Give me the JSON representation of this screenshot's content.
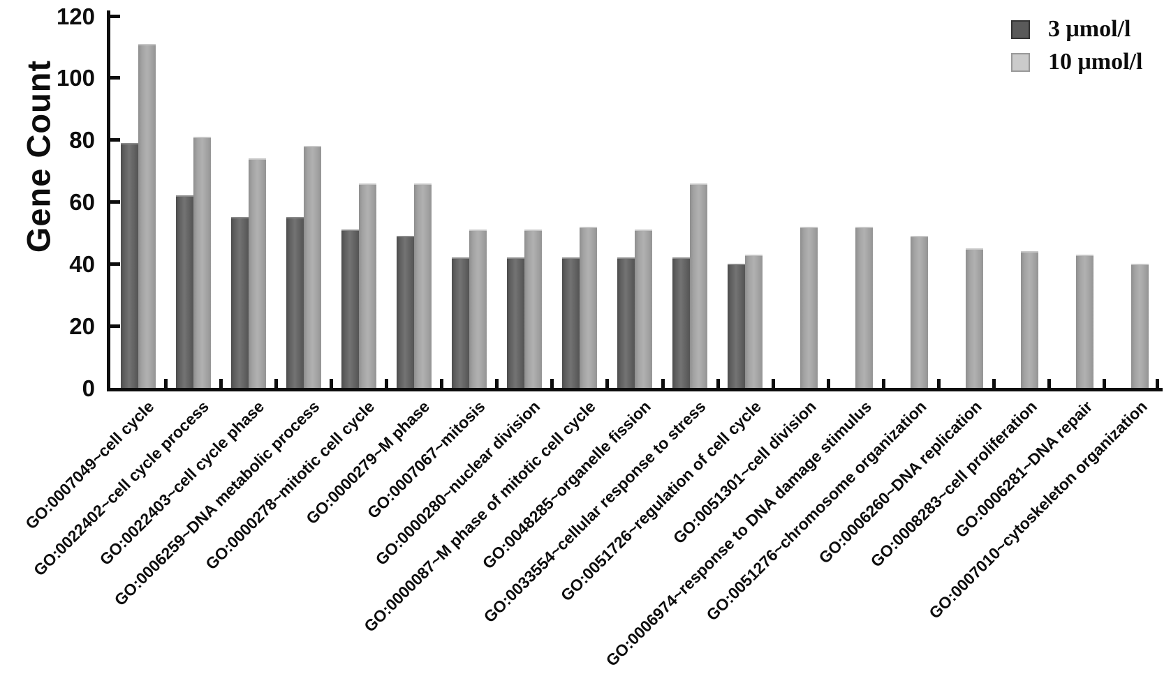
{
  "chart_data": {
    "type": "bar",
    "title": "",
    "xlabel": "",
    "ylabel": "Gene Count",
    "ylim": [
      0,
      120
    ],
    "yticks": [
      0,
      20,
      40,
      60,
      80,
      100,
      120
    ],
    "grid": false,
    "legend_position": "top-right",
    "categories": [
      "GO:0007049~cell cycle",
      "GO:0022402~cell cycle process",
      "GO:0022403~cell cycle phase",
      "GO:0006259~DNA metabolic process",
      "GO:0000278~mitotic cell cycle",
      "GO:0000279~M phase",
      "GO:0007067~mitosis",
      "GO:0000280~nuclear division",
      "GO:0000087~M phase of mitotic cell cycle",
      "GO:0048285~organelle fission",
      "GO:0033554~cellular response to stress",
      "GO:0051726~regulation of cell cycle",
      "GO:0051301~cell division",
      "GO:0006974~response to DNA damage stimulus",
      "GO:0051276~chromosome organization",
      "GO:0006260~DNA replication",
      "GO:0008283~cell proliferation",
      "GO:0006281~DNA repair",
      "GO:0007010~cytoskeleton organization"
    ],
    "series": [
      {
        "name": "3 μmol/l",
        "color": "#5f5f5f",
        "values": [
          79,
          62,
          55,
          55,
          51,
          49,
          42,
          42,
          42,
          42,
          42,
          40,
          null,
          null,
          null,
          null,
          null,
          null,
          null
        ]
      },
      {
        "name": "10 μmol/l",
        "color": "#a6a6a6",
        "values": [
          111,
          81,
          74,
          78,
          66,
          66,
          51,
          51,
          52,
          51,
          66,
          43,
          52,
          52,
          49,
          45,
          44,
          43,
          40
        ]
      }
    ]
  }
}
